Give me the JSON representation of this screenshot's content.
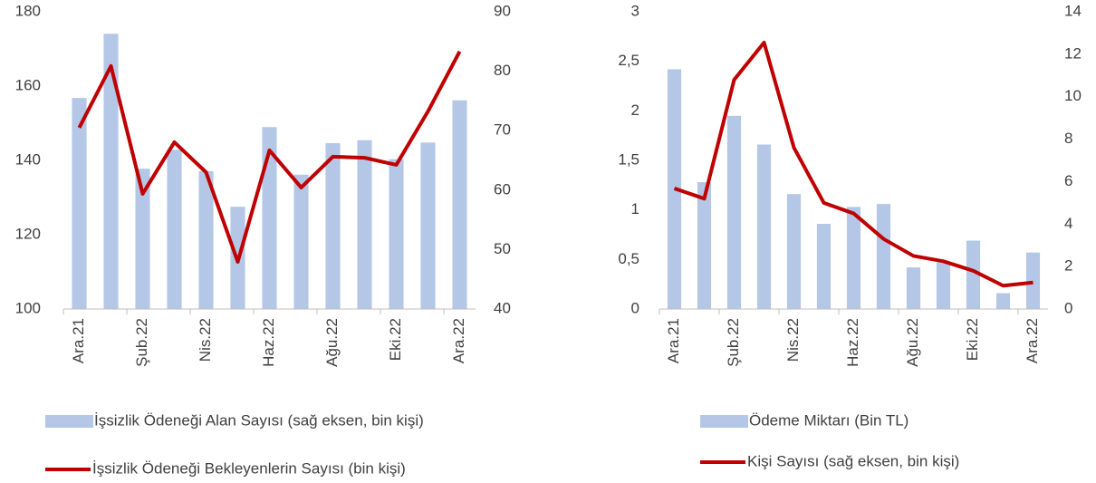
{
  "chart_data": [
    {
      "type": "combo",
      "categories": [
        "Ara.21",
        null,
        "Şub.22",
        null,
        "Nis.22",
        null,
        "Haz.22",
        null,
        "Ağu.22",
        null,
        "Eki.22",
        null,
        "Ara.22"
      ],
      "series": [
        {
          "name": "İşsizlik Ödeneği Alan Sayısı (sağ eksen, bin kişi)",
          "type": "bar",
          "axis": "y2",
          "color": "#b4c7e7",
          "values": [
            75.5,
            86.3,
            63.6,
            66.8,
            63.2,
            57.2,
            70.6,
            62.6,
            67.9,
            68.4,
            65.2,
            68.0,
            75.1
          ]
        },
        {
          "name": "İşsizlik Ödeneği Bekleyenlerin Sayısı (bin kişi)",
          "type": "line",
          "axis": "y",
          "color": "#c00000",
          "values": [
            148.8,
            165.4,
            131.0,
            144.9,
            136.8,
            112.7,
            142.7,
            132.7,
            141.0,
            140.7,
            138.8,
            153.2,
            169.3
          ]
        }
      ],
      "ylim": [
        100,
        180
      ],
      "yticks": [
        100,
        120,
        140,
        160,
        180
      ],
      "y2lim": [
        40,
        90
      ],
      "y2ticks": [
        40,
        50,
        60,
        70,
        80,
        90
      ],
      "grid": false
    },
    {
      "type": "combo",
      "categories": [
        "Ara.21",
        null,
        "Şub.22",
        null,
        "Nis.22",
        null,
        "Haz.22",
        null,
        "Ağu.22",
        null,
        "Eki.22",
        null,
        "Ara.22"
      ],
      "series": [
        {
          "name": "Ödeme Miktarı (Bin TL)",
          "type": "bar",
          "axis": "y",
          "color": "#b4c7e7",
          "values": [
            2.42,
            1.28,
            1.95,
            1.66,
            1.16,
            0.86,
            1.03,
            1.06,
            0.42,
            0.47,
            0.69,
            0.16,
            0.57
          ]
        },
        {
          "name": "Kişi Sayısı (sağ eksen, bin kişi)",
          "type": "line",
          "axis": "y2",
          "color": "#c00000",
          "values": [
            5.68,
            5.2,
            10.8,
            12.55,
            7.6,
            5.0,
            4.5,
            3.3,
            2.5,
            2.25,
            1.8,
            1.1,
            1.25
          ]
        }
      ],
      "ylim": [
        0,
        3
      ],
      "yticks": [
        0,
        {
          "value": 0.5,
          "label": "0,5"
        },
        1,
        {
          "value": 1.5,
          "label": "1,5"
        },
        2,
        {
          "value": 2.5,
          "label": "2,5"
        },
        3
      ],
      "y2lim": [
        0,
        14
      ],
      "y2ticks": [
        0,
        2,
        4,
        6,
        8,
        10,
        12,
        14
      ],
      "grid": false
    }
  ]
}
